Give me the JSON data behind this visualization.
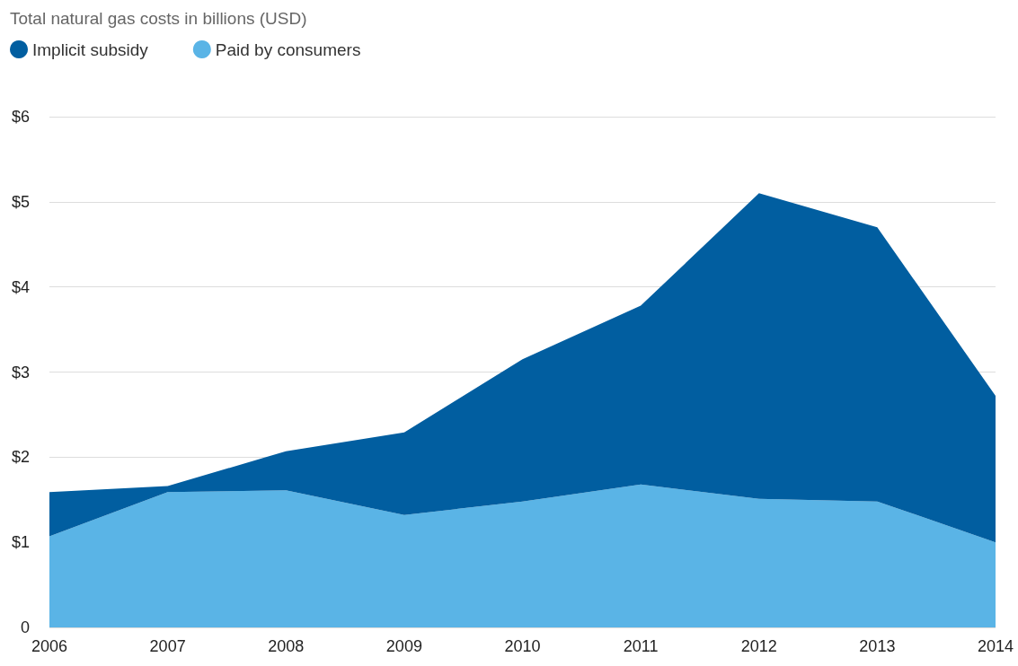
{
  "chart_data": {
    "type": "area",
    "title": "Total natural gas costs in billions (USD)",
    "categories": [
      "2006",
      "2007",
      "2008",
      "2009",
      "2010",
      "2011",
      "2012",
      "2013",
      "2014"
    ],
    "stacked": true,
    "series": [
      {
        "name": "Paid by consumers",
        "color": "#5ab4e6",
        "values": [
          1.07,
          1.59,
          1.61,
          1.32,
          1.48,
          1.68,
          1.51,
          1.48,
          1.0
        ]
      },
      {
        "name": "Implicit subsidy",
        "color": "#015ea0",
        "values": [
          0.52,
          0.07,
          0.46,
          0.97,
          1.67,
          2.1,
          3.59,
          3.22,
          1.72
        ]
      }
    ],
    "ylim": [
      0,
      6
    ],
    "yticks": [
      0,
      {
        "value": 1,
        "label": "$1"
      },
      {
        "value": 2,
        "label": "$2"
      },
      {
        "value": 3,
        "label": "$3"
      },
      {
        "value": 4,
        "label": "$4"
      },
      {
        "value": 5,
        "label": "$5"
      },
      {
        "value": 6,
        "label": "$6"
      }
    ],
    "grid": "y",
    "legend": "top left"
  }
}
